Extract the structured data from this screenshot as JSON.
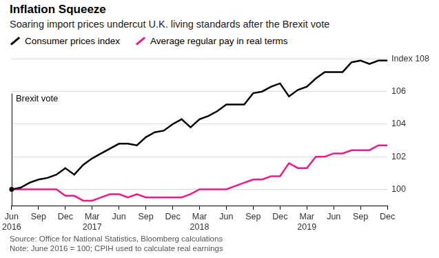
{
  "chart_data": {
    "type": "line",
    "title": "Inflation Squeeze",
    "subtitle": "Soaring import prices undercut U.K. living standards after the Brexit vote",
    "source": "Source: Office for National Statistics, Bloomberg calculations",
    "note": "Note: June 2016 = 100; CPIH used to calculate real earnings",
    "categories": [
      "Jun 2016",
      null,
      null,
      "Sep",
      null,
      null,
      "Dec",
      null,
      null,
      "Mar 2017",
      null,
      null,
      "Jun",
      null,
      null,
      "Sep",
      null,
      null,
      "Dec",
      null,
      null,
      "Mar 2018",
      null,
      null,
      "Jun",
      null,
      null,
      "Sep",
      null,
      null,
      "Dec",
      null,
      null,
      "Mar 2019",
      null,
      null,
      "Jun",
      null,
      null,
      "Sep",
      null,
      null,
      "Dec"
    ],
    "series": [
      {
        "name": "Consumer prices index",
        "color": "#000000",
        "values": [
          100.0,
          100.1,
          100.4,
          100.6,
          100.7,
          100.9,
          101.3,
          100.9,
          101.5,
          101.9,
          102.2,
          102.5,
          102.8,
          102.8,
          102.7,
          103.2,
          103.5,
          103.6,
          104.0,
          104.3,
          103.8,
          104.3,
          104.5,
          104.8,
          105.2,
          105.2,
          105.2,
          105.9,
          106.0,
          106.3,
          106.5,
          105.7,
          106.1,
          106.3,
          106.8,
          107.2,
          107.2,
          107.2,
          107.8,
          107.9,
          107.7,
          107.9,
          107.9
        ]
      },
      {
        "name": "Average regular pay in real terms",
        "color": "#f0168c",
        "values": [
          100.0,
          100.0,
          100.0,
          100.0,
          100.0,
          100.0,
          99.6,
          99.6,
          99.3,
          99.3,
          99.5,
          99.7,
          99.7,
          99.5,
          99.7,
          99.5,
          99.5,
          99.5,
          99.5,
          99.5,
          99.7,
          100.0,
          100.0,
          100.0,
          100.0,
          100.2,
          100.4,
          100.6,
          100.6,
          100.8,
          100.8,
          101.6,
          101.3,
          101.3,
          102.0,
          102.0,
          102.2,
          102.2,
          102.4,
          102.4,
          102.4,
          102.7,
          102.7
        ]
      }
    ],
    "ylim": [
      99,
      108
    ],
    "yticks": [
      100,
      102,
      104,
      106,
      {
        "value": 108,
        "label": "Index 108"
      }
    ],
    "grid": true,
    "legend": "top-left",
    "annotations": [
      {
        "text": "Brexit vote",
        "x": "Jun 2016"
      }
    ]
  }
}
